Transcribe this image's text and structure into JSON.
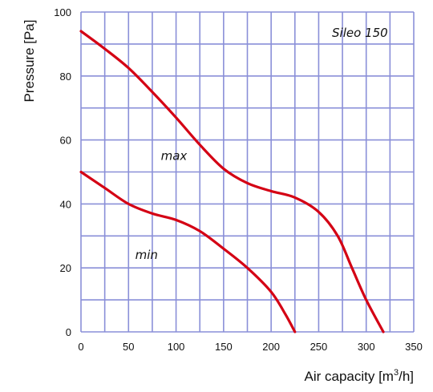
{
  "chart_data": {
    "type": "line",
    "title": "Sileo 150",
    "xlabel": "Air  capacity [m",
    "xlabel_sup": "3",
    "xlabel_end": "/h]",
    "ylabel": "Pressure [Pa]",
    "xlim": [
      0,
      350
    ],
    "ylim": [
      0,
      100
    ],
    "xticks": [
      "0",
      "50",
      "100",
      "150",
      "200",
      "250",
      "300",
      "350"
    ],
    "yticks": [
      "0",
      "20",
      "40",
      "60",
      "80",
      "100"
    ],
    "x_gridlines": [
      0,
      25,
      50,
      75,
      100,
      125,
      150,
      175,
      200,
      225,
      250,
      275,
      300,
      325,
      350
    ],
    "y_gridlines": [
      0,
      10,
      20,
      30,
      40,
      50,
      60,
      70,
      80,
      90,
      100
    ],
    "grid": true,
    "line_color": "#d40014",
    "grid_color": "#8a8fd8",
    "series": [
      {
        "name": "max",
        "x": [
          0,
          25,
          50,
          75,
          100,
          125,
          150,
          175,
          200,
          225,
          250,
          270,
          285,
          300,
          318
        ],
        "y": [
          94,
          88.5,
          82.5,
          75,
          67,
          58.5,
          51,
          46.5,
          44,
          42,
          37.5,
          30,
          20,
          10,
          0
        ]
      },
      {
        "name": "min",
        "x": [
          0,
          25,
          50,
          75,
          100,
          125,
          150,
          175,
          200,
          215,
          225
        ],
        "y": [
          50,
          45,
          40,
          37,
          35,
          31.5,
          26,
          20,
          12.5,
          5.5,
          0
        ]
      }
    ],
    "curve_labels": [
      {
        "text": "max",
        "x": 84,
        "y": 55
      },
      {
        "text": "min",
        "x": 57,
        "y": 24
      }
    ]
  }
}
